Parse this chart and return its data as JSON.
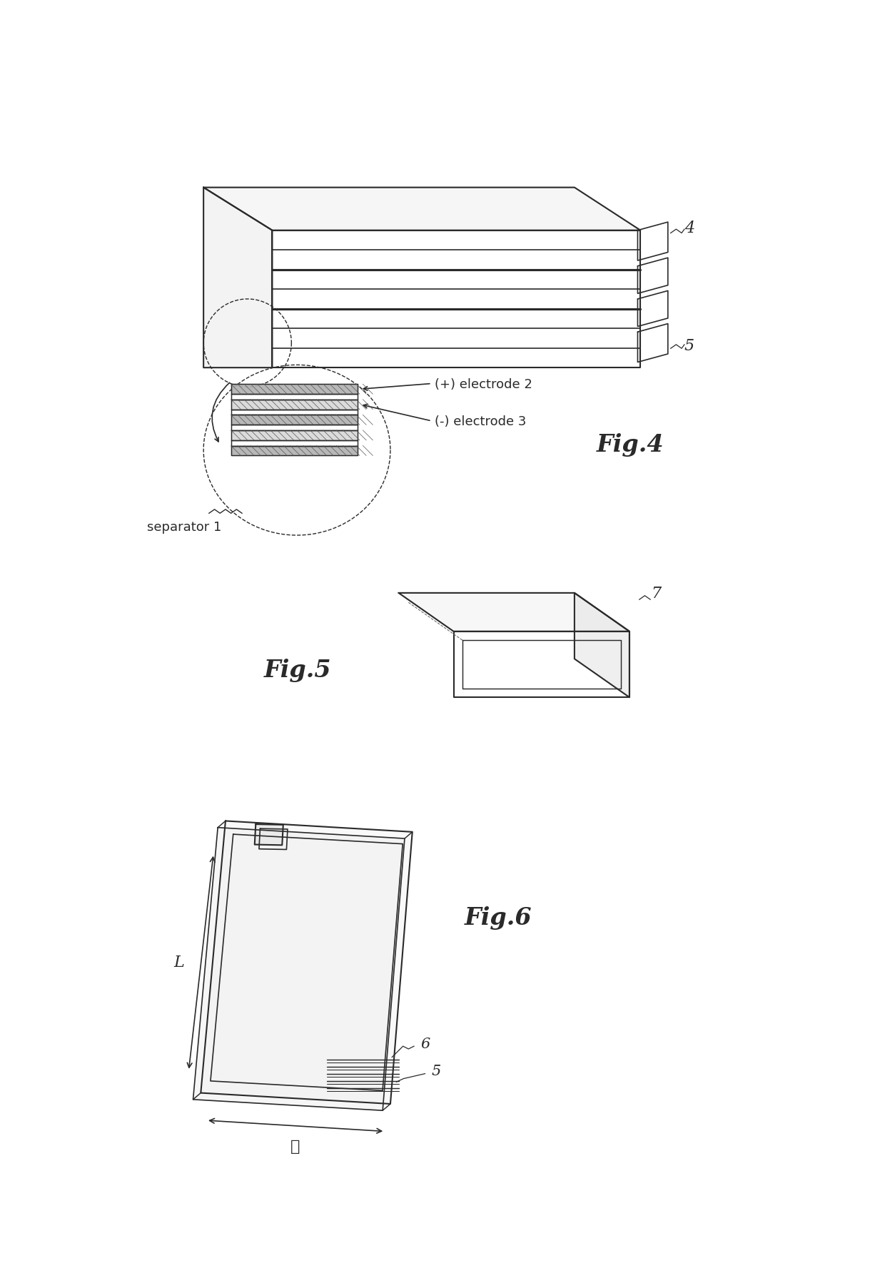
{
  "background_color": "#ffffff",
  "line_color": "#2a2a2a",
  "fig4_label": "Fig.4",
  "fig5_label": "Fig.5",
  "fig6_label": "Fig.6",
  "label_4": "4",
  "label_5": "5",
  "label_7": "7",
  "label_6": "6",
  "label_L": "L",
  "label_l": "ℓ",
  "text_sep": "separator 1",
  "text_pos": "(+) electrode 2",
  "text_neg": "(-) electrode 3",
  "line_width": 1.5
}
